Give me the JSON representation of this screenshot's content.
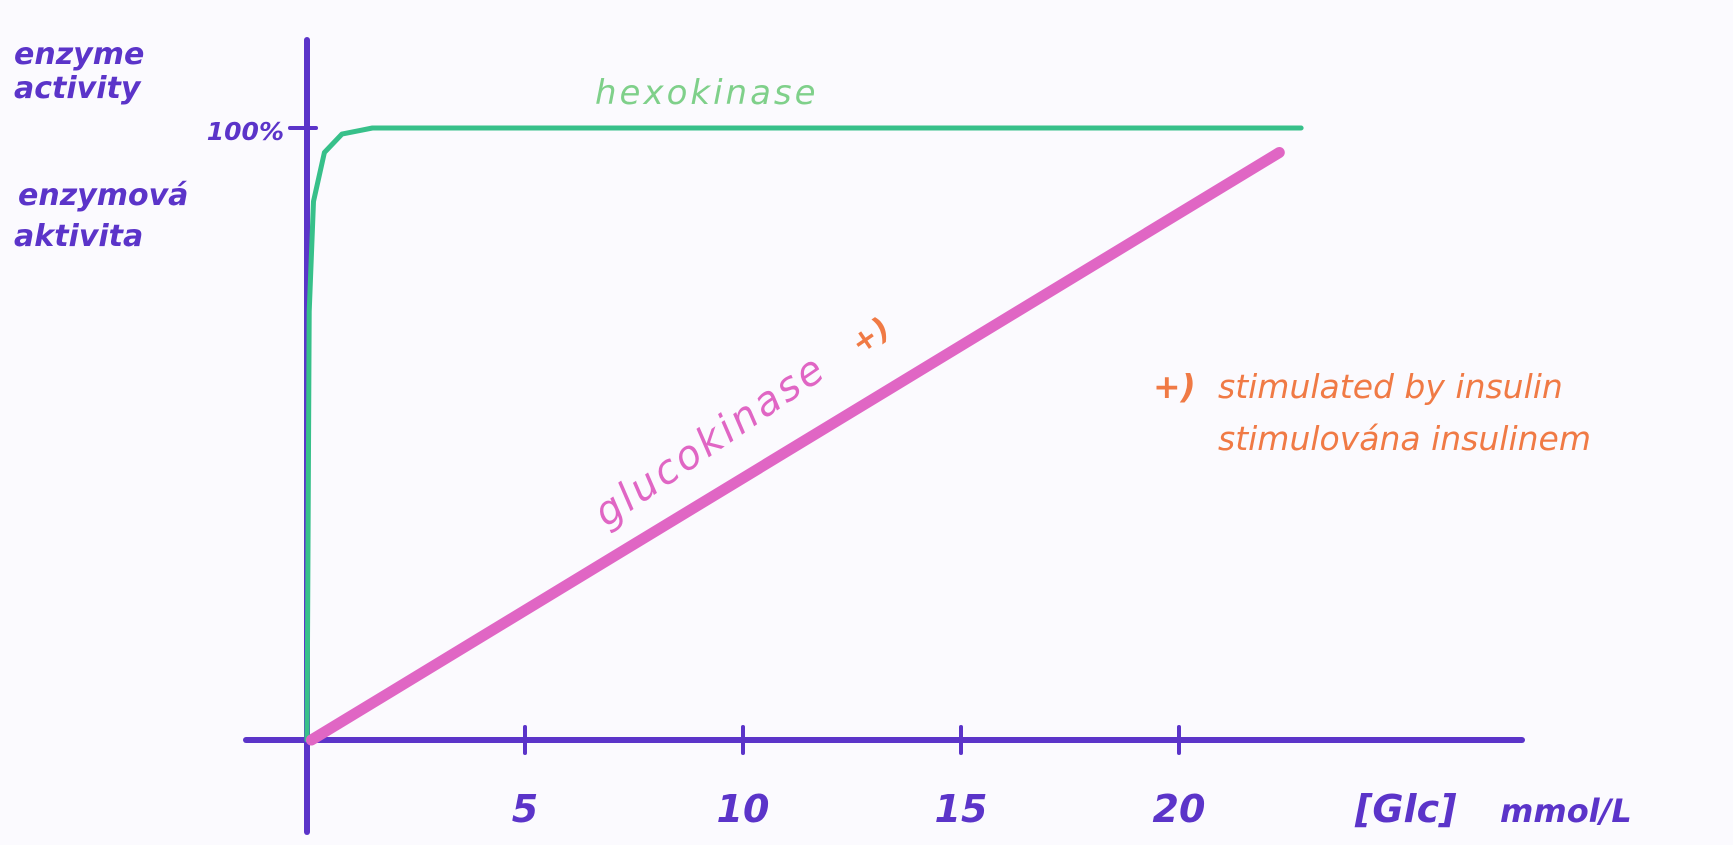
{
  "chart_data": {
    "type": "line",
    "title": "",
    "ylabel_lines": [
      "enzyme",
      "activity"
    ],
    "ylabel_cz_lines": [
      "enzymová",
      "aktivita"
    ],
    "xlabel": "[Glc]",
    "xunit": "mmol/L",
    "x_ticks": [
      5,
      10,
      15,
      20
    ],
    "y_ticks": [
      {
        "value": 100,
        "label": "100%"
      }
    ],
    "xlim": [
      0,
      28
    ],
    "ylim": [
      0,
      100
    ],
    "grid": false,
    "series": [
      {
        "name": "hexokinase",
        "color": "#37c08a",
        "points": [
          [
            0,
            0
          ],
          [
            0.05,
            70
          ],
          [
            0.15,
            88
          ],
          [
            0.4,
            96
          ],
          [
            0.8,
            99
          ],
          [
            1.5,
            100
          ],
          [
            10,
            100
          ],
          [
            20,
            100
          ],
          [
            22.8,
            100
          ]
        ]
      },
      {
        "name": "glucokinase",
        "name_mark": "+)",
        "color": "#e066c4",
        "points": [
          [
            0.1,
            0
          ],
          [
            22.3,
            96
          ]
        ]
      }
    ],
    "annotations": [
      {
        "mark": "+)",
        "lines": [
          "stimulated by insulin",
          "stimulována insulinem"
        ],
        "color": "#f07a45"
      }
    ]
  }
}
